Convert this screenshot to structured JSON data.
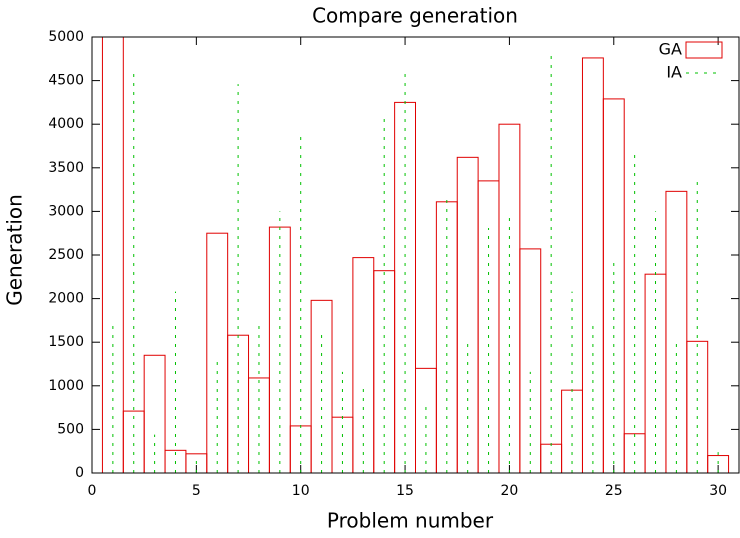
{
  "chart_data": {
    "type": "bar",
    "title": "Compare generation",
    "x_label": "Problem number",
    "y_label": "Generation",
    "x": [
      1,
      2,
      3,
      4,
      5,
      6,
      7,
      8,
      9,
      10,
      11,
      12,
      13,
      14,
      15,
      16,
      17,
      18,
      19,
      20,
      21,
      22,
      23,
      24,
      25,
      26,
      27,
      28,
      29,
      30
    ],
    "series": [
      {
        "name": "GA",
        "color": "#e00000",
        "style": "boxes",
        "values": [
          5000,
          710,
          1350,
          260,
          220,
          2750,
          1580,
          1090,
          2820,
          540,
          1980,
          640,
          2470,
          2320,
          4250,
          1200,
          3110,
          3620,
          3350,
          4000,
          2570,
          330,
          950,
          4760,
          4290,
          450,
          2280,
          3230,
          1510,
          200
        ]
      },
      {
        "name": "IA",
        "color": "#00c000",
        "style": "impulses",
        "values": [
          1720,
          4640,
          440,
          2080,
          150,
          1330,
          4460,
          1720,
          3000,
          3920,
          1640,
          1160,
          1000,
          4090,
          4640,
          770,
          3190,
          1510,
          2810,
          2960,
          1160,
          4830,
          2080,
          1720,
          2440,
          3680,
          3000,
          1510,
          3360,
          240
        ]
      }
    ],
    "xlim": [
      0,
      31
    ],
    "xticks": [
      0,
      5,
      10,
      15,
      20,
      25,
      30
    ],
    "ylim": [
      0,
      5000
    ],
    "yticks": [
      0,
      500,
      1000,
      1500,
      2000,
      2500,
      3000,
      3500,
      4000,
      4500,
      5000
    ],
    "legend": "top-right"
  }
}
